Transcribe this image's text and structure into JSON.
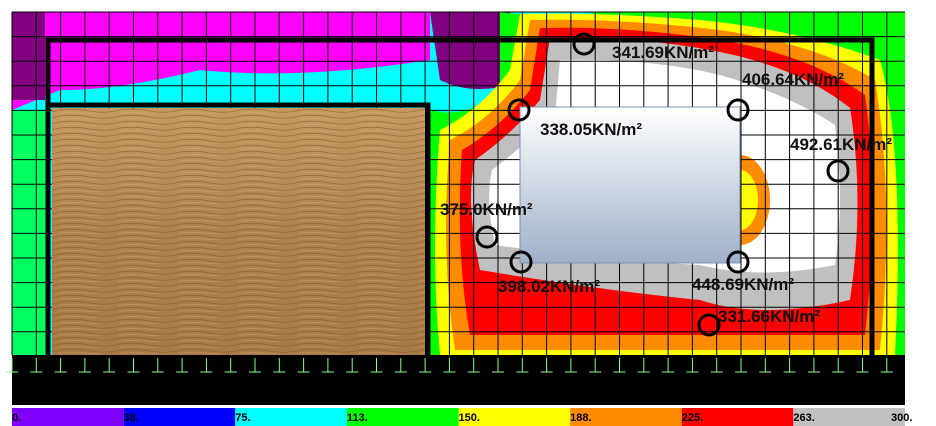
{
  "annotations": [
    {
      "label": "341.69KN/m²"
    },
    {
      "label": "406.64KN/m²"
    },
    {
      "label": "338.05KN/m²"
    },
    {
      "label": "492.61KN/m²"
    },
    {
      "label": "375.0KN/m²"
    },
    {
      "label": "398.02KN/m²"
    },
    {
      "label": "448.69KN/m²"
    },
    {
      "label": "331.66KN/m²"
    }
  ],
  "legend": {
    "labels": [
      "0.",
      "38.",
      "75.",
      "113.",
      "150.",
      "188.",
      "225.",
      "263.",
      "300."
    ]
  }
}
